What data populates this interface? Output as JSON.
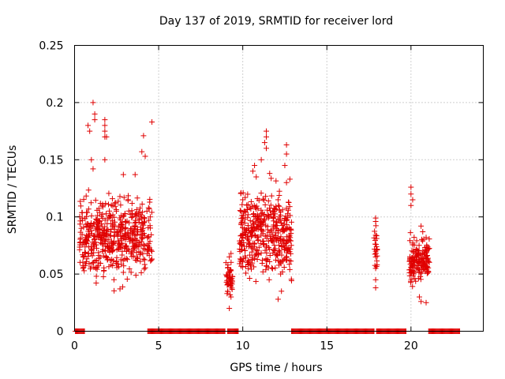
{
  "chart_data": {
    "type": "scatter",
    "title": "Day 137 of 2019, SRMTID for receiver lord",
    "xlabel": "GPS time / hours",
    "ylabel": "SRMTID / TECUs",
    "xlim": [
      0,
      24.3
    ],
    "ylim": [
      0,
      0.25
    ],
    "xticks": [
      0,
      5,
      10,
      15,
      20
    ],
    "yticks": [
      0,
      0.05,
      0.1,
      0.15,
      0.2,
      0.25
    ],
    "xtick_labels": [
      "0",
      "5",
      "10",
      "15",
      "20"
    ],
    "ytick_labels": [
      "0",
      "0.05",
      "0.1",
      "0.15",
      "0.2",
      "0.25"
    ],
    "grid": true,
    "marker": "+",
    "color": "#e00000",
    "series": [
      {
        "name": "SRMTID",
        "clusters": [
          {
            "x_range": [
              0.3,
              4.6
            ],
            "y_center": 0.082,
            "y_spread": 0.028,
            "count": 520
          },
          {
            "x_range": [
              9.0,
              9.4
            ],
            "y_center": 0.045,
            "y_spread": 0.012,
            "count": 45
          },
          {
            "x_range": [
              9.8,
              12.9
            ],
            "y_center": 0.085,
            "y_spread": 0.03,
            "count": 420
          },
          {
            "x_range": [
              17.8,
              18.0
            ],
            "y_center": 0.07,
            "y_spread": 0.02,
            "count": 20
          },
          {
            "x_range": [
              19.9,
              21.1
            ],
            "y_center": 0.062,
            "y_spread": 0.015,
            "count": 170
          }
        ],
        "points": [
          [
            1.1,
            0.2
          ],
          [
            1.2,
            0.19
          ],
          [
            1.2,
            0.185
          ],
          [
            0.8,
            0.18
          ],
          [
            0.9,
            0.175
          ],
          [
            1.8,
            0.185
          ],
          [
            1.8,
            0.18
          ],
          [
            1.8,
            0.175
          ],
          [
            1.8,
            0.17
          ],
          [
            1.9,
            0.17
          ],
          [
            4.6,
            0.183
          ],
          [
            4.1,
            0.171
          ],
          [
            4.0,
            0.157
          ],
          [
            4.2,
            0.153
          ],
          [
            1.0,
            0.15
          ],
          [
            1.8,
            0.15
          ],
          [
            1.1,
            0.142
          ],
          [
            2.9,
            0.137
          ],
          [
            3.6,
            0.137
          ],
          [
            4.3,
            0.105
          ],
          [
            4.5,
            0.1
          ],
          [
            4.4,
            0.108
          ],
          [
            0.5,
            0.055
          ],
          [
            11.4,
            0.175
          ],
          [
            11.4,
            0.17
          ],
          [
            11.3,
            0.165
          ],
          [
            11.4,
            0.16
          ],
          [
            12.6,
            0.163
          ],
          [
            12.6,
            0.155
          ],
          [
            12.5,
            0.145
          ],
          [
            11.1,
            0.15
          ],
          [
            10.6,
            0.14
          ],
          [
            10.7,
            0.145
          ],
          [
            10.8,
            0.135
          ],
          [
            11.6,
            0.138
          ],
          [
            12.8,
            0.133
          ],
          [
            12.6,
            0.13
          ],
          [
            9.9,
            0.121
          ],
          [
            10.0,
            0.115
          ],
          [
            12.1,
            0.115
          ],
          [
            12.1,
            0.098
          ],
          [
            12.1,
            0.086
          ],
          [
            12.4,
            0.08
          ],
          [
            17.9,
            0.099
          ],
          [
            17.9,
            0.096
          ],
          [
            17.9,
            0.084
          ],
          [
            17.9,
            0.07
          ],
          [
            17.9,
            0.065
          ],
          [
            17.9,
            0.055
          ],
          [
            17.9,
            0.045
          ],
          [
            17.9,
            0.038
          ],
          [
            20.0,
            0.126
          ],
          [
            20.0,
            0.12
          ],
          [
            20.1,
            0.115
          ],
          [
            20.0,
            0.11
          ],
          [
            20.6,
            0.092
          ],
          [
            20.7,
            0.087
          ],
          [
            20.9,
            0.082
          ],
          [
            20.5,
            0.03
          ],
          [
            20.6,
            0.026
          ],
          [
            20.9,
            0.025
          ],
          [
            9.2,
            0.02
          ],
          [
            9.3,
            0.03
          ],
          [
            9.1,
            0.035
          ],
          [
            9.0,
            0.06
          ],
          [
            9.2,
            0.065
          ],
          [
            9.3,
            0.068
          ],
          [
            12.1,
            0.028
          ],
          [
            12.3,
            0.035
          ]
        ],
        "zero_segments": [
          [
            0.05,
            0.6
          ],
          [
            4.35,
            8.95
          ],
          [
            9.1,
            9.75
          ],
          [
            12.9,
            17.85
          ],
          [
            17.95,
            19.75
          ],
          [
            21.05,
            22.9
          ]
        ]
      }
    ]
  }
}
